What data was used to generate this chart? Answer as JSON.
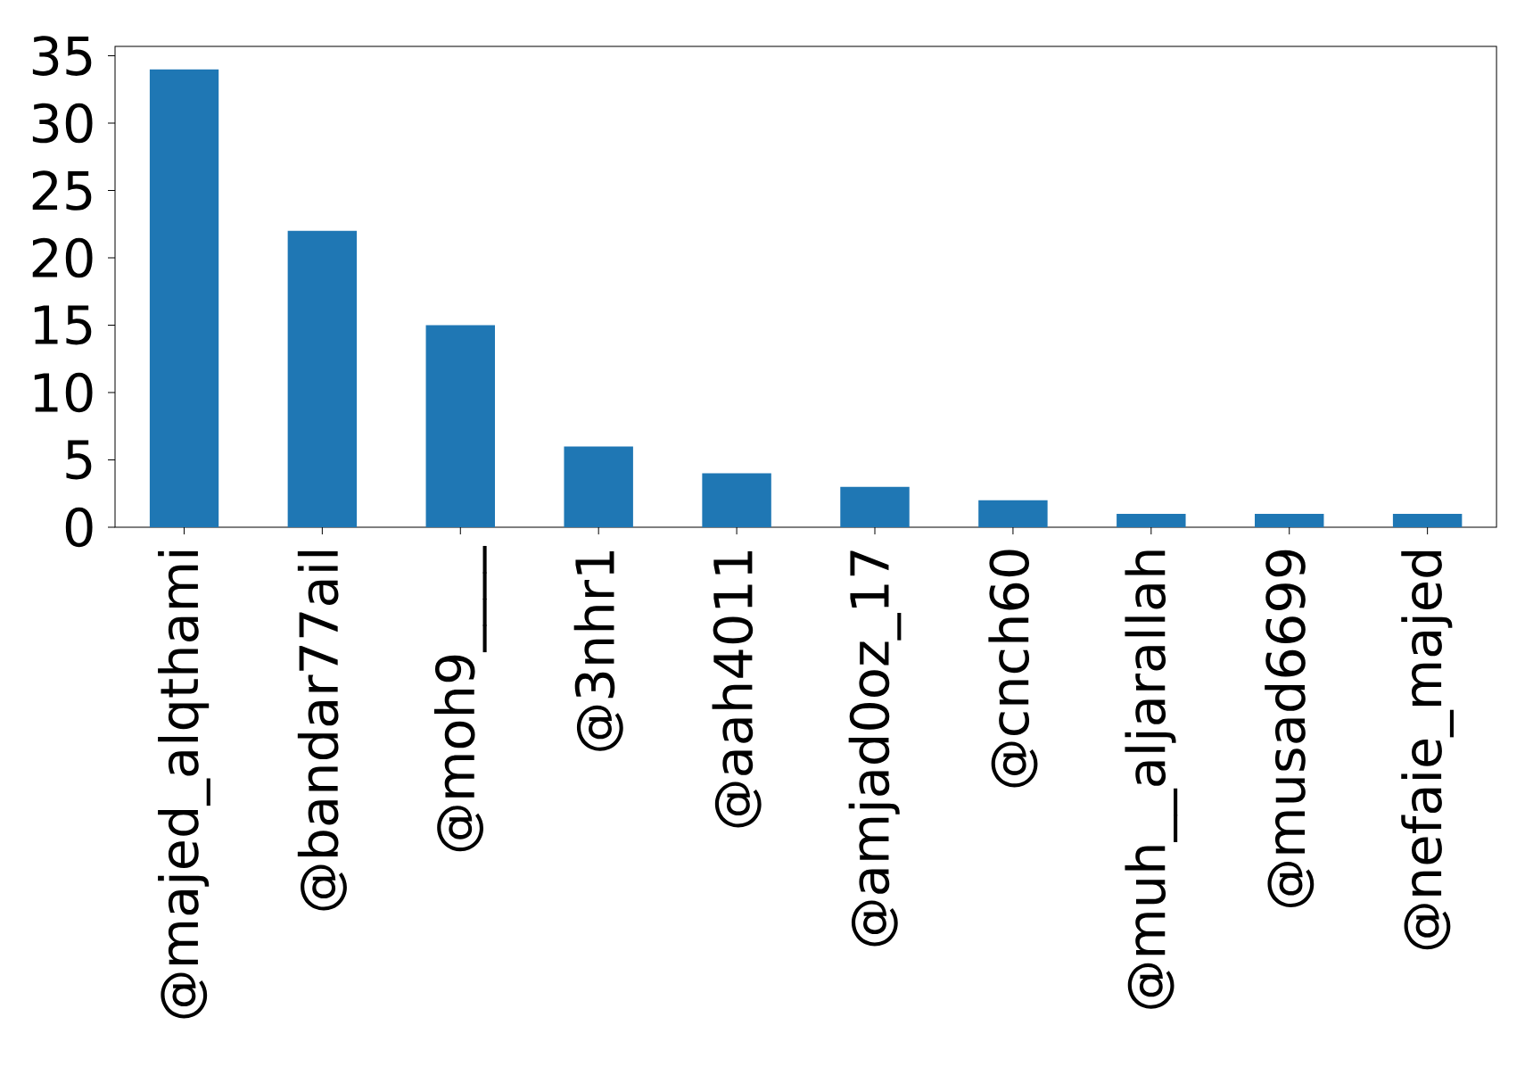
{
  "chart_data": {
    "type": "bar",
    "categories": [
      "@majed_alqthami",
      "@bandar77ail",
      "@moh9____",
      "@3nhr1",
      "@aah4011",
      "@amjad0oz_17",
      "@cnch60",
      "@muh__aljarallah",
      "@musad6699",
      "@nefaie_majed"
    ],
    "values": [
      34,
      22,
      15,
      6,
      4,
      3,
      2,
      1,
      1,
      1
    ],
    "color": "#1f77b4",
    "ylim": [
      0,
      35.7
    ],
    "yticks": [
      0,
      5,
      10,
      15,
      20,
      25,
      30,
      35
    ]
  }
}
